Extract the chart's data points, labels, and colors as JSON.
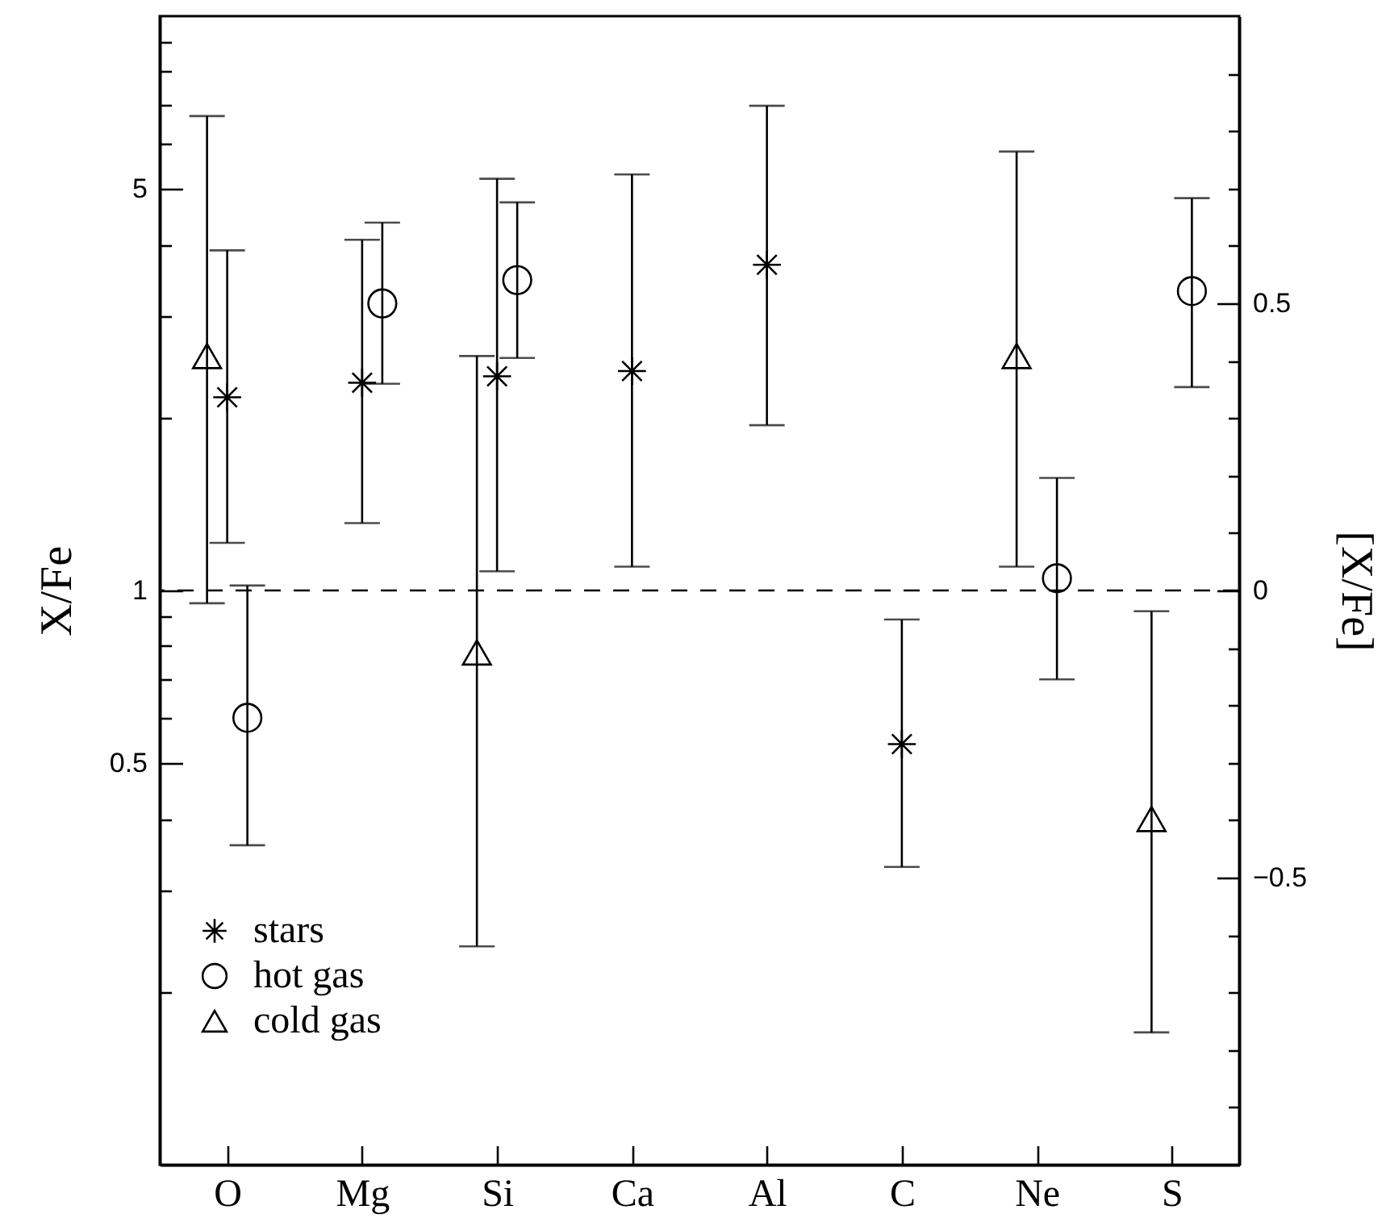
{
  "chart_data": {
    "type": "scatter",
    "xlabel": null,
    "ylabel": "X/Fe",
    "y2label": "[X/Fe]",
    "categories": [
      "O",
      "Mg",
      "Si",
      "Ca",
      "Al",
      "C",
      "Ne",
      "S"
    ],
    "series": [
      {
        "name": "stars",
        "color": "#000000",
        "marker": "cross",
        "x": [
          "O",
          "Mg",
          "Si",
          "Ca",
          "Al",
          "C"
        ],
        "values": [
          2.17,
          2.3,
          2.36,
          2.41,
          3.69,
          0.54
        ],
        "errors": [
          [
            1.21,
            3.91
          ],
          [
            1.31,
            4.08
          ],
          [
            1.08,
            5.21
          ],
          [
            1.1,
            5.3
          ],
          [
            1.94,
            6.98
          ],
          [
            0.33,
            0.89
          ]
        ]
      },
      {
        "name": "hot gas",
        "color": "#000000",
        "marker": "circle",
        "x": [
          "O",
          "Mg",
          "Si",
          "Ne",
          "S"
        ],
        "values": [
          0.6,
          3.16,
          3.47,
          1.05,
          3.32
        ],
        "errors": [
          [
            0.36,
            1.02
          ],
          [
            2.29,
            4.37
          ],
          [
            2.54,
            4.74
          ],
          [
            0.7,
            1.57
          ],
          [
            2.26,
            4.82
          ]
        ]
      },
      {
        "name": "cold gas",
        "color": "#000000",
        "marker": "triangle",
        "x": [
          "O",
          "Si",
          "Ne",
          "S"
        ],
        "values": [
          2.56,
          0.78,
          2.56,
          0.4
        ],
        "errors": [
          [
            0.95,
            6.7
          ],
          [
            0.24,
            2.56
          ],
          [
            1.1,
            5.81
          ],
          [
            0.17,
            0.92
          ]
        ]
      }
    ],
    "log": true,
    "ylim": [
      0.1,
      10
    ],
    "yticks": [
      {
        "value": 0.2,
        "label": null
      },
      {
        "value": 0.3,
        "label": null
      },
      {
        "value": 0.4,
        "label": null
      },
      0.5,
      {
        "value": 0.6,
        "label": null
      },
      {
        "value": 0.7,
        "label": null
      },
      {
        "value": 0.8,
        "label": null
      },
      {
        "value": 0.9,
        "label": null
      },
      1,
      {
        "value": 2,
        "label": null
      },
      {
        "value": 3,
        "label": null
      },
      {
        "value": 4,
        "label": null
      },
      5,
      {
        "value": 6,
        "label": null
      },
      {
        "value": 7,
        "label": null
      },
      {
        "value": 8,
        "label": null
      },
      {
        "value": 9,
        "label": null
      }
    ],
    "y2lim": [
      -1,
      1
    ],
    "y2ticks": [
      {
        "value": -0.9,
        "label": null
      },
      {
        "value": -0.8,
        "label": null
      },
      {
        "value": -0.7,
        "label": null
      },
      {
        "value": -0.6,
        "label": null
      },
      {
        "value": -0.5,
        "label": "−0.5"
      },
      {
        "value": -0.4,
        "label": null
      },
      {
        "value": -0.3,
        "label": null
      },
      {
        "value": -0.2,
        "label": null
      },
      {
        "value": -0.1,
        "label": null
      },
      0,
      {
        "value": 0.1,
        "label": null
      },
      {
        "value": 0.2,
        "label": null
      },
      {
        "value": 0.3,
        "label": null
      },
      {
        "value": 0.4,
        "label": null
      },
      0.5,
      {
        "value": 0.6,
        "label": null
      },
      {
        "value": 0.7,
        "label": null
      },
      {
        "value": 0.8,
        "label": null
      },
      {
        "value": 0.9,
        "label": null
      }
    ],
    "ref_lines": [
      {
        "axis": "y",
        "value": 1,
        "line_style": "dashed",
        "color": "#000000"
      }
    ],
    "legend": "bottom left",
    "grid": false
  }
}
